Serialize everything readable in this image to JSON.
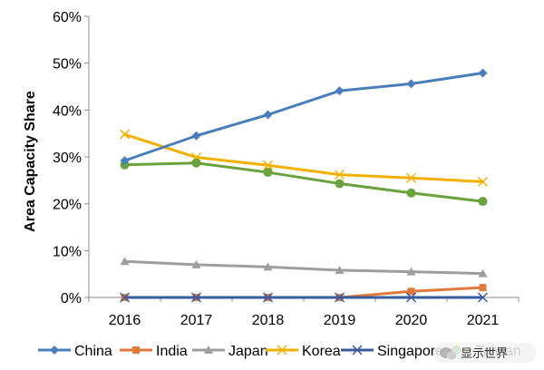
{
  "chart_data": {
    "type": "line",
    "title": "",
    "xlabel": "",
    "ylabel": "Area Capacity Share",
    "ylim": [
      0,
      60
    ],
    "yticks": [
      "0%",
      "10%",
      "20%",
      "30%",
      "40%",
      "50%",
      "60%"
    ],
    "x": [
      "2016",
      "2017",
      "2018",
      "2019",
      "2020",
      "2021"
    ],
    "grid": false,
    "legend_position": "bottom",
    "series": [
      {
        "name": "China",
        "color": "#4a7ebb",
        "marker": "diamond",
        "values": [
          29.2,
          34.5,
          39.0,
          44.1,
          45.6,
          47.9
        ]
      },
      {
        "name": "India",
        "color": "#e07a3a",
        "marker": "square",
        "values": [
          0.0,
          0.0,
          0.0,
          0.0,
          1.3,
          2.1
        ]
      },
      {
        "name": "Japan",
        "color": "#9e9e9e",
        "marker": "triangle",
        "values": [
          7.7,
          7.0,
          6.5,
          5.8,
          5.5,
          5.1
        ]
      },
      {
        "name": "Korea",
        "color": "#f2b100",
        "marker": "x",
        "values": [
          34.8,
          29.9,
          28.2,
          26.2,
          25.5,
          24.7
        ]
      },
      {
        "name": "Singapore",
        "color": "#3a5a9c",
        "marker": "x",
        "values": [
          0.0,
          0.0,
          0.0,
          0.0,
          0.0,
          0.0
        ]
      },
      {
        "name": "Taiwan",
        "color": "#6aa23e",
        "marker": "circle",
        "values": [
          28.3,
          28.7,
          26.7,
          24.3,
          22.3,
          20.5
        ]
      }
    ]
  },
  "watermark": {
    "text": "显示世界",
    "icon": "wechat-icon"
  }
}
